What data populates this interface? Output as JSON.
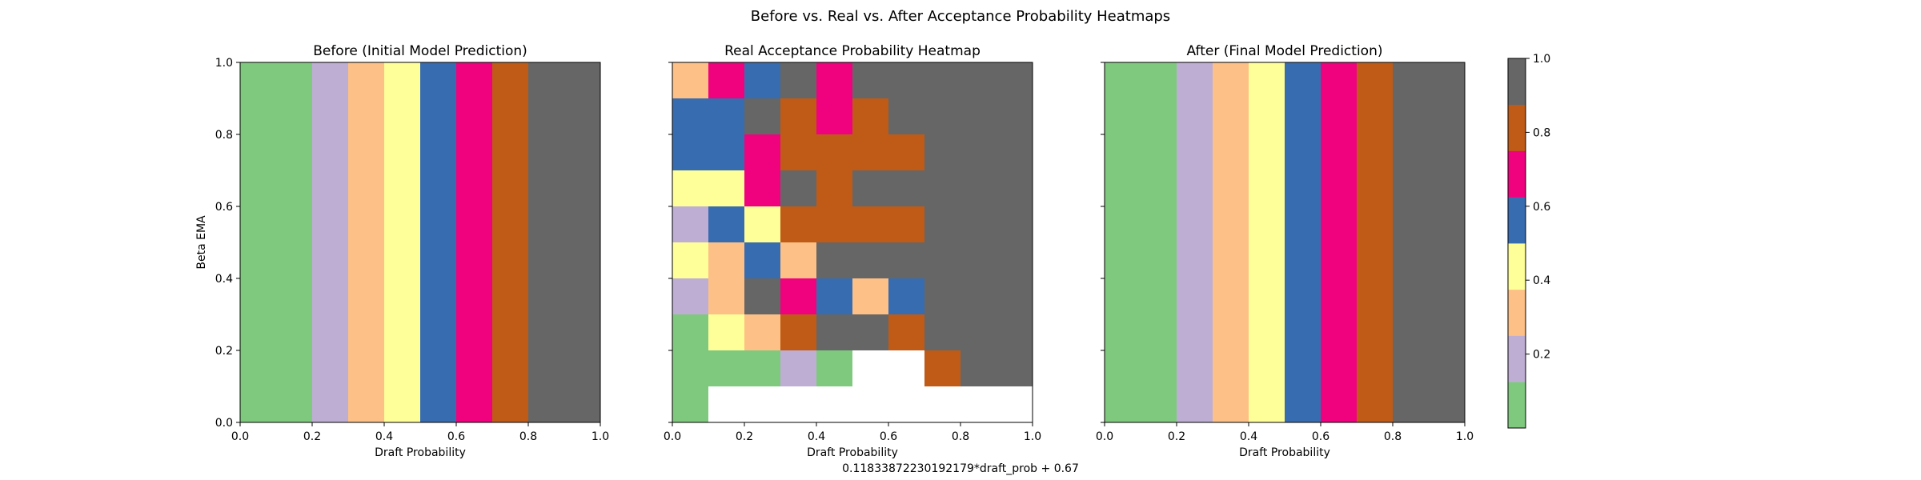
{
  "figure": {
    "title": "Before vs. Real vs. After Acceptance Probability Heatmaps",
    "footer_text": "0.11833872230192179*draft_prob + 0.67"
  },
  "colors": {
    "palette": [
      "#7fc97f",
      "#beaed4",
      "#fdc086",
      "#ffff99",
      "#386cb0",
      "#f0027f",
      "#bf5b17",
      "#666666"
    ],
    "missing": "#ffffff"
  },
  "colorbar": {
    "bounds": [
      0.0,
      0.125,
      0.25,
      0.375,
      0.5,
      0.625,
      0.75,
      0.875,
      1.0
    ],
    "tick_values": [
      0.2,
      0.4,
      0.6,
      0.8,
      1.0
    ],
    "tick_labels": [
      "0.2",
      "0.4",
      "0.6",
      "0.8",
      "1.0"
    ]
  },
  "chart_data": [
    {
      "type": "heatmap",
      "title": "Before (Initial Model Prediction)",
      "xlabel": "Draft Probability",
      "ylabel": "Beta EMA",
      "xlim": [
        0,
        1
      ],
      "ylim": [
        0,
        1
      ],
      "x_ticks": [
        "0.0",
        "0.2",
        "0.4",
        "0.6",
        "0.8",
        "1.0"
      ],
      "y_ticks": [
        "0.0",
        "0.2",
        "0.4",
        "0.6",
        "0.8",
        "1.0"
      ],
      "columns": [
        {
          "x0": 0.0,
          "x1": 0.2,
          "value": 0.05
        },
        {
          "x0": 0.2,
          "x1": 0.3,
          "value": 0.2
        },
        {
          "x0": 0.3,
          "x1": 0.4,
          "value": 0.3
        },
        {
          "x0": 0.4,
          "x1": 0.5,
          "value": 0.45
        },
        {
          "x0": 0.5,
          "x1": 0.6,
          "value": 0.55
        },
        {
          "x0": 0.6,
          "x1": 0.7,
          "value": 0.7
        },
        {
          "x0": 0.7,
          "x1": 0.8,
          "value": 0.8
        },
        {
          "x0": 0.8,
          "x1": 1.0,
          "value": 0.95
        }
      ]
    },
    {
      "type": "heatmap",
      "title": "Real Acceptance Probability Heatmap",
      "xlabel": "Draft Probability",
      "ylabel": "",
      "xlim": [
        0,
        1
      ],
      "ylim": [
        0,
        1
      ],
      "x_ticks": [
        "0.0",
        "0.2",
        "0.4",
        "0.6",
        "0.8",
        "1.0"
      ],
      "grid_note": "10 columns x 10 rows; rows listed top (Beta EMA 0.9–1.0) to bottom (0.0–0.1); null = no data",
      "x_edges": [
        0.0,
        0.1,
        0.2,
        0.3,
        0.4,
        0.5,
        0.6,
        0.7,
        0.8,
        0.9,
        1.0
      ],
      "y_edges": [
        0.0,
        0.1,
        0.2,
        0.3,
        0.4,
        0.5,
        0.6,
        0.7,
        0.8,
        0.9,
        1.0
      ],
      "values": [
        [
          0.3,
          0.7,
          0.55,
          0.95,
          0.7,
          0.95,
          0.95,
          0.95,
          0.95,
          0.95
        ],
        [
          0.55,
          0.55,
          0.95,
          0.8,
          0.7,
          0.8,
          0.95,
          0.95,
          0.95,
          0.95
        ],
        [
          0.55,
          0.55,
          0.7,
          0.8,
          0.8,
          0.8,
          0.8,
          0.95,
          0.95,
          0.95
        ],
        [
          0.45,
          0.45,
          0.7,
          0.95,
          0.8,
          0.95,
          0.95,
          0.95,
          0.95,
          0.95
        ],
        [
          0.2,
          0.55,
          0.45,
          0.8,
          0.8,
          0.8,
          0.8,
          0.95,
          0.95,
          0.95
        ],
        [
          0.45,
          0.3,
          0.55,
          0.3,
          0.95,
          0.95,
          0.95,
          0.95,
          0.95,
          0.95
        ],
        [
          0.2,
          0.3,
          0.95,
          0.7,
          0.55,
          0.3,
          0.55,
          0.95,
          0.95,
          0.95
        ],
        [
          0.05,
          0.45,
          0.3,
          0.8,
          0.95,
          0.95,
          0.8,
          0.95,
          0.95,
          0.95
        ],
        [
          0.05,
          0.05,
          0.05,
          0.2,
          0.05,
          null,
          null,
          0.8,
          0.95,
          0.95
        ],
        [
          0.05,
          null,
          null,
          null,
          null,
          null,
          null,
          null,
          null,
          null
        ]
      ]
    },
    {
      "type": "heatmap",
      "title": "After (Final Model Prediction)",
      "xlabel": "Draft Probability",
      "ylabel": "",
      "xlim": [
        0,
        1
      ],
      "ylim": [
        0,
        1
      ],
      "x_ticks": [
        "0.0",
        "0.2",
        "0.4",
        "0.6",
        "0.8",
        "1.0"
      ],
      "columns": [
        {
          "x0": 0.0,
          "x1": 0.2,
          "value": 0.05
        },
        {
          "x0": 0.2,
          "x1": 0.3,
          "value": 0.2
        },
        {
          "x0": 0.3,
          "x1": 0.4,
          "value": 0.3
        },
        {
          "x0": 0.4,
          "x1": 0.5,
          "value": 0.45
        },
        {
          "x0": 0.5,
          "x1": 0.6,
          "value": 0.55
        },
        {
          "x0": 0.6,
          "x1": 0.7,
          "value": 0.7
        },
        {
          "x0": 0.7,
          "x1": 0.8,
          "value": 0.8
        },
        {
          "x0": 0.8,
          "x1": 1.0,
          "value": 0.95
        }
      ]
    }
  ]
}
